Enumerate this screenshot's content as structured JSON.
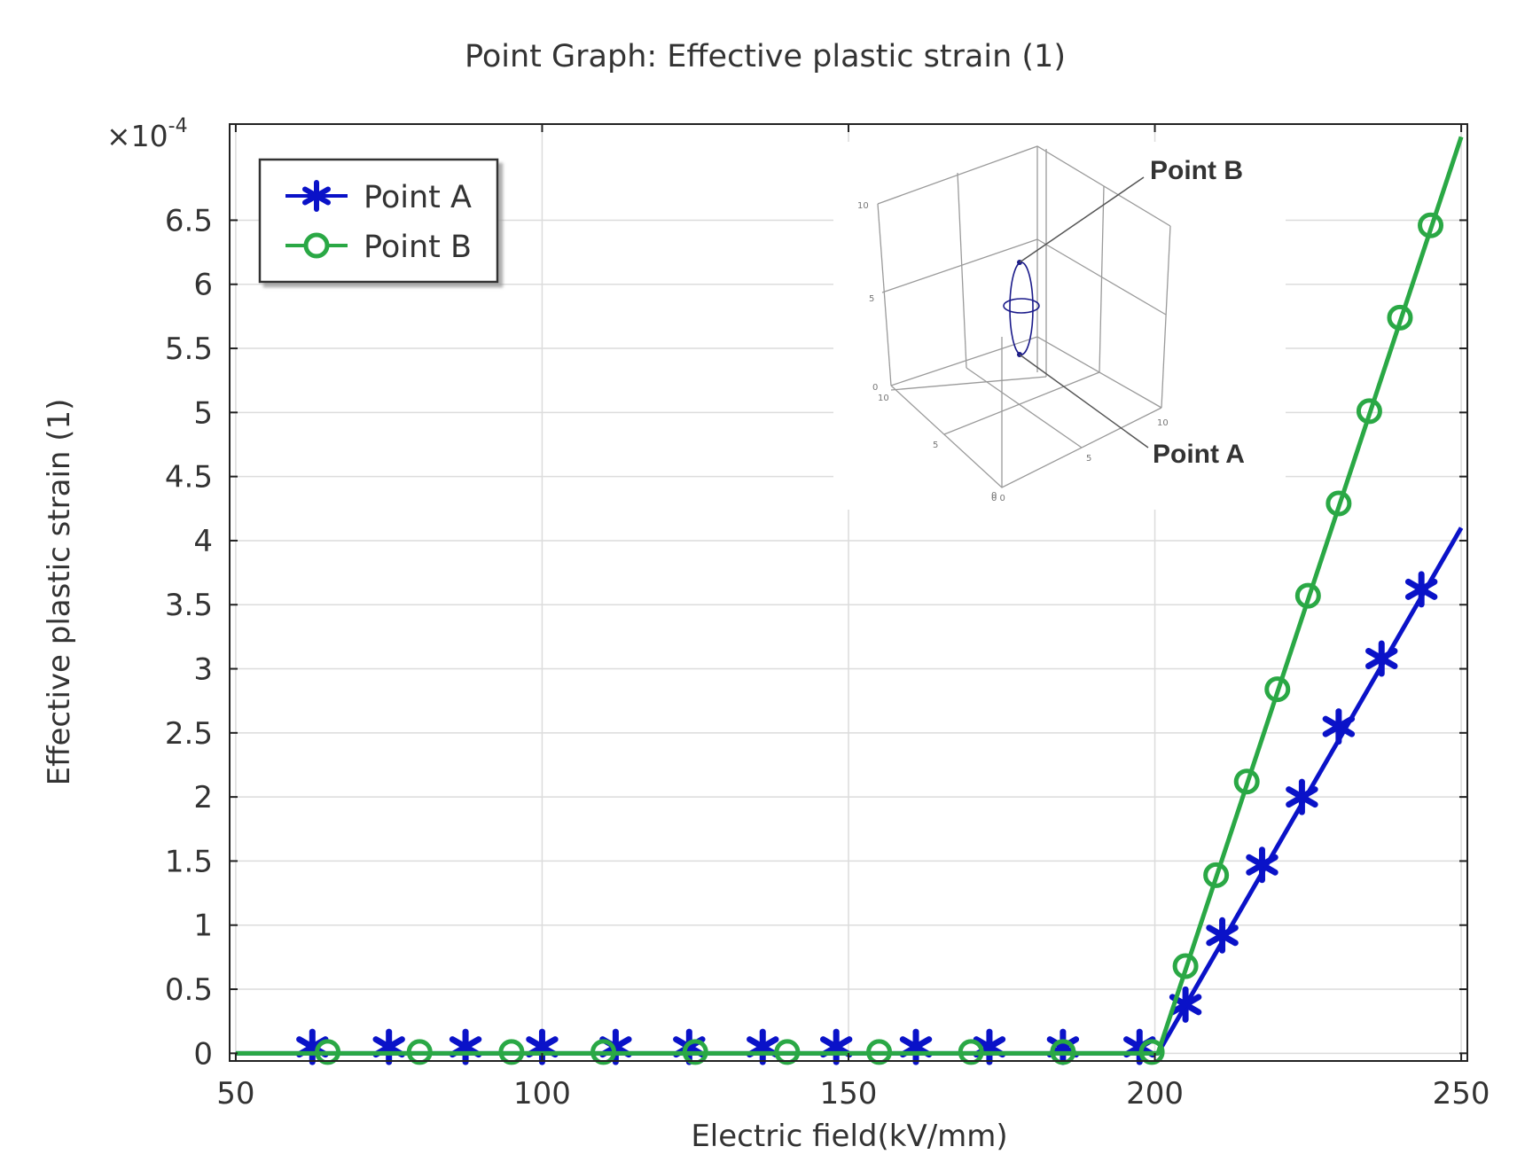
{
  "chart_data": {
    "type": "line",
    "title": "Point Graph: Effective plastic strain (1)",
    "xlabel": "Electric field(kV/mm)",
    "ylabel": "Effective plastic strain (1)",
    "y_multiplier": "×10",
    "y_multiplier_exp": "-4",
    "xlim": [
      49,
      251
    ],
    "ylim": [
      -0.06,
      7.25
    ],
    "xticks": [
      "50",
      "100",
      "150",
      "200",
      "250"
    ],
    "yticks": [
      "0",
      "0.5",
      "1",
      "1.5",
      "2",
      "2.5",
      "3",
      "3.5",
      "4",
      "4.5",
      "5",
      "5.5",
      "6",
      "6.5"
    ],
    "grid": true,
    "legend": "top-left",
    "series": [
      {
        "name": "Point A",
        "color": "#0a12c8",
        "marker": "asterisk",
        "line": [
          [
            50,
            0
          ],
          [
            200.5,
            0
          ],
          [
            250,
            4.1
          ]
        ],
        "markers": [
          [
            62.5,
            0.05
          ],
          [
            75,
            0.05
          ],
          [
            87.5,
            0.05
          ],
          [
            100,
            0.05
          ],
          [
            112,
            0.05
          ],
          [
            124,
            0.05
          ],
          [
            136,
            0.05
          ],
          [
            148,
            0.05
          ],
          [
            161,
            0.05
          ],
          [
            173,
            0.05
          ],
          [
            185,
            0.05
          ],
          [
            197.5,
            0.05
          ],
          [
            205,
            0.38
          ],
          [
            211,
            0.92
          ],
          [
            217.5,
            1.47
          ],
          [
            224,
            2.0
          ],
          [
            230,
            2.55
          ],
          [
            237,
            3.08
          ],
          [
            243.5,
            3.62
          ]
        ]
      },
      {
        "name": "Point B",
        "color": "#2aa845",
        "marker": "circle",
        "line": [
          [
            50,
            0
          ],
          [
            200.5,
            0
          ],
          [
            250,
            7.15
          ]
        ],
        "markers": [
          [
            65,
            0.01
          ],
          [
            80,
            0.01
          ],
          [
            95,
            0.01
          ],
          [
            110,
            0.01
          ],
          [
            125,
            0.01
          ],
          [
            140,
            0.01
          ],
          [
            155,
            0.01
          ],
          [
            170,
            0.01
          ],
          [
            185,
            0.01
          ],
          [
            199.5,
            0.01
          ],
          [
            205,
            0.68
          ],
          [
            210,
            1.39
          ],
          [
            215,
            2.12
          ],
          [
            220,
            2.84
          ],
          [
            225,
            3.57
          ],
          [
            230,
            4.29
          ],
          [
            235,
            5.01
          ],
          [
            240,
            5.74
          ],
          [
            245,
            6.46
          ]
        ]
      }
    ]
  },
  "inset": {
    "label_b": "Point B",
    "label_a": "Point A",
    "tick_labels": [
      "10",
      "5",
      "0",
      "10",
      "5",
      "0",
      "10",
      "5",
      "0 0"
    ]
  }
}
